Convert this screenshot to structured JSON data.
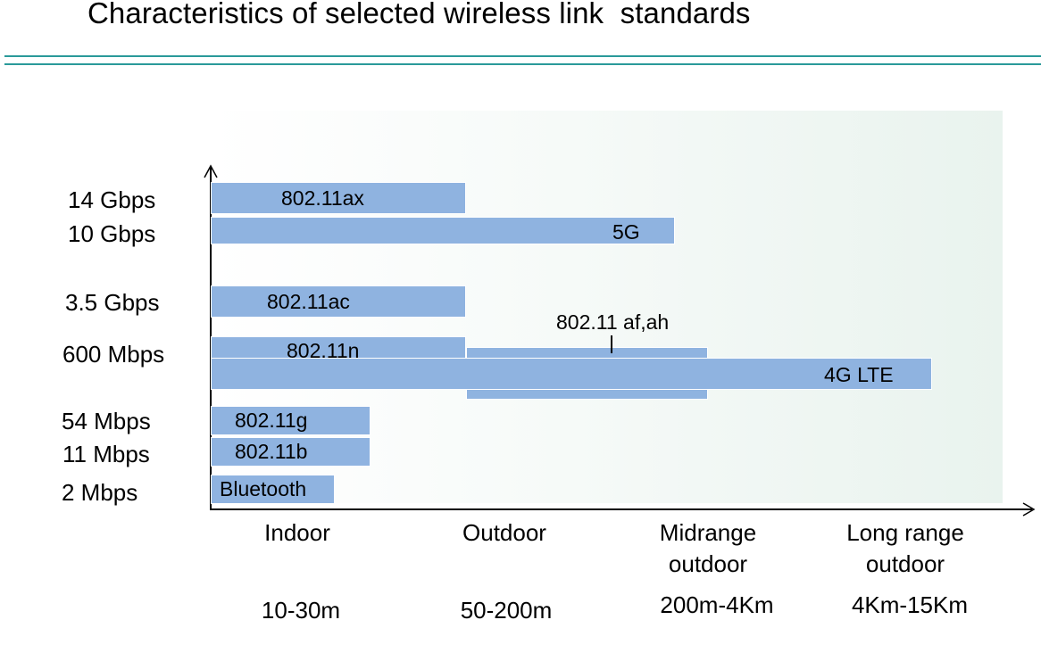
{
  "title": "Characteristics of selected wireless link  standards",
  "y_labels": [
    "14 Gbps",
    "10 Gbps",
    "3.5 Gbps",
    "600 Mbps",
    "54 Mbps",
    "11 Mbps",
    "2 Mbps"
  ],
  "standards": {
    "ax": "802.11ax",
    "g5": "5G",
    "ac": "802.11ac",
    "afah": "802.11 af,ah",
    "n": "802.11n",
    "lte": "4G LTE",
    "g": "802.11g",
    "b": "802.11b",
    "bt": "Bluetooth"
  },
  "x_categories": [
    {
      "line1": "Indoor",
      "line2": "",
      "range": "10-30m"
    },
    {
      "line1": "Outdoor",
      "line2": "",
      "range": "50-200m"
    },
    {
      "line1": "Midrange",
      "line2": "outdoor",
      "range": "200m-4Km"
    },
    {
      "line1": "Long range",
      "line2": "outdoor",
      "range": "4Km-15Km"
    }
  ],
  "colors": {
    "bar": "#8fb3e0",
    "rule": "#2a9a9a"
  }
}
